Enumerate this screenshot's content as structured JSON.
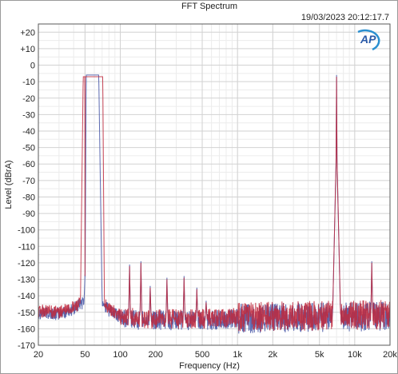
{
  "chart_data": {
    "type": "line",
    "title": "FFT Spectrum",
    "timestamp": "19/03/2023 20:12:17.7",
    "logo_text": "AP",
    "xlabel": "Frequency (Hz)",
    "ylabel": "Level (dBrA)",
    "x_scale": "log",
    "xlim": [
      20,
      20000
    ],
    "ylim": [
      -170,
      25
    ],
    "grid": true,
    "x_ticks": [
      {
        "value": 20,
        "label": "20"
      },
      {
        "value": 50,
        "label": "50"
      },
      {
        "value": 100,
        "label": "100"
      },
      {
        "value": 200,
        "label": "200"
      },
      {
        "value": 500,
        "label": "500"
      },
      {
        "value": 1000,
        "label": "1k"
      },
      {
        "value": 2000,
        "label": "2k"
      },
      {
        "value": 5000,
        "label": "5k"
      },
      {
        "value": 10000,
        "label": "10k"
      },
      {
        "value": 20000,
        "label": "20k"
      }
    ],
    "y_ticks": [
      {
        "value": 20,
        "label": "+20"
      },
      {
        "value": 10,
        "label": "+10"
      },
      {
        "value": 0,
        "label": "0"
      },
      {
        "value": -10,
        "label": "-10"
      },
      {
        "value": -20,
        "label": "-20"
      },
      {
        "value": -30,
        "label": "-30"
      },
      {
        "value": -40,
        "label": "-40"
      },
      {
        "value": -50,
        "label": "-50"
      },
      {
        "value": -60,
        "label": "-60"
      },
      {
        "value": -70,
        "label": "-70"
      },
      {
        "value": -80,
        "label": "-80"
      },
      {
        "value": -90,
        "label": "-90"
      },
      {
        "value": -100,
        "label": "-100"
      },
      {
        "value": -110,
        "label": "-110"
      },
      {
        "value": -120,
        "label": "-120"
      },
      {
        "value": -130,
        "label": "-130"
      },
      {
        "value": -140,
        "label": "-140"
      },
      {
        "value": -150,
        "label": "-150"
      },
      {
        "value": -160,
        "label": "-160"
      },
      {
        "value": -170,
        "label": "-170"
      }
    ],
    "series": [
      {
        "color": "#4a5aa8",
        "noise_floor": [
          [
            20,
            -150
          ],
          [
            30,
            -151
          ],
          [
            40,
            -148
          ],
          [
            50,
            -143
          ],
          [
            55,
            -138
          ],
          [
            70,
            -143
          ],
          [
            80,
            -149
          ],
          [
            100,
            -153
          ],
          [
            150,
            -155
          ],
          [
            200,
            -155
          ],
          [
            500,
            -155
          ],
          [
            1000,
            -154
          ],
          [
            5000,
            -153
          ],
          [
            10000,
            -153
          ],
          [
            20000,
            -152
          ]
        ],
        "peaks": [
          {
            "freq": 50,
            "level": -127
          },
          {
            "freq": 60,
            "level": -6
          },
          {
            "freq": 120,
            "level": -121
          },
          {
            "freq": 150,
            "level": -119
          },
          {
            "freq": 180,
            "level": -134
          },
          {
            "freq": 250,
            "level": -129
          },
          {
            "freq": 350,
            "level": -128
          },
          {
            "freq": 450,
            "level": -135
          },
          {
            "freq": 540,
            "level": -143
          },
          {
            "freq": 7000,
            "level": -6
          },
          {
            "freq": 13980,
            "level": -119
          }
        ]
      },
      {
        "color": "#c0283c",
        "noise_floor": [
          [
            20,
            -149
          ],
          [
            30,
            -150
          ],
          [
            40,
            -147
          ],
          [
            50,
            -142
          ],
          [
            55,
            -137
          ],
          [
            70,
            -142
          ],
          [
            80,
            -148
          ],
          [
            100,
            -152
          ],
          [
            150,
            -154
          ],
          [
            200,
            -154
          ],
          [
            500,
            -154
          ],
          [
            1000,
            -153
          ],
          [
            5000,
            -152
          ],
          [
            10000,
            -152
          ],
          [
            20000,
            -151
          ]
        ],
        "peaks": [
          {
            "freq": 50,
            "level": -128
          },
          {
            "freq": 60,
            "level": -7
          },
          {
            "freq": 120,
            "level": -122
          },
          {
            "freq": 150,
            "level": -120
          },
          {
            "freq": 180,
            "level": -135
          },
          {
            "freq": 250,
            "level": -130
          },
          {
            "freq": 350,
            "level": -129
          },
          {
            "freq": 450,
            "level": -136
          },
          {
            "freq": 540,
            "level": -144
          },
          {
            "freq": 7000,
            "level": -7
          },
          {
            "freq": 13980,
            "level": -120
          }
        ]
      }
    ]
  }
}
